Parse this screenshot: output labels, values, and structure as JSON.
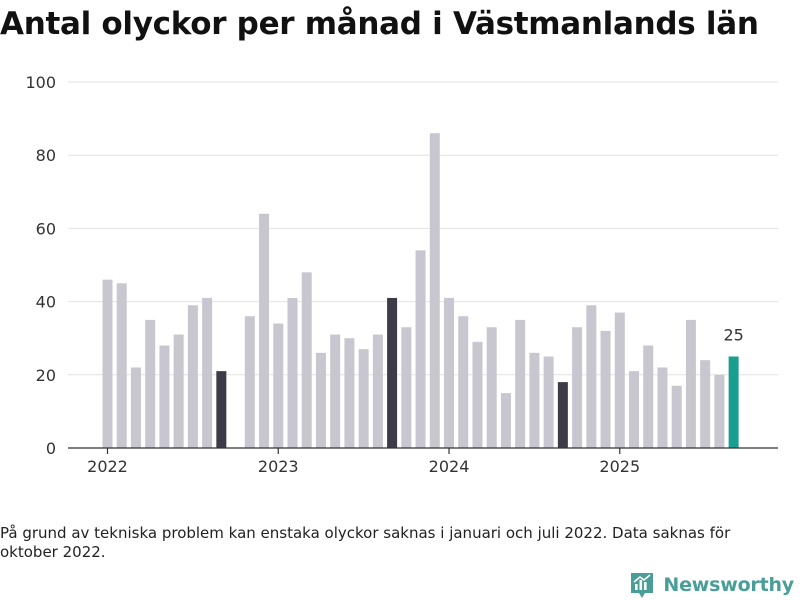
{
  "header": {
    "title": "Antal olyckor per månad i Västmanlands län"
  },
  "chart_data": {
    "type": "bar",
    "title": "Antal olyckor per månad i Västmanlands län",
    "xlabel": "",
    "ylabel": "",
    "ylim": [
      0,
      100
    ],
    "yticks": [
      0,
      20,
      40,
      60,
      80,
      100
    ],
    "year_labels": [
      {
        "label": "2022",
        "start_index": 0
      },
      {
        "label": "2023",
        "start_index": 12
      },
      {
        "label": "2024",
        "start_index": 24
      },
      {
        "label": "2025",
        "start_index": 36
      }
    ],
    "categories": [
      "2022-01",
      "2022-02",
      "2022-03",
      "2022-04",
      "2022-05",
      "2022-06",
      "2022-07",
      "2022-08",
      "2022-09",
      "2022-10",
      "2022-11",
      "2022-12",
      "2023-01",
      "2023-02",
      "2023-03",
      "2023-04",
      "2023-05",
      "2023-06",
      "2023-07",
      "2023-08",
      "2023-09",
      "2023-10",
      "2023-11",
      "2023-12",
      "2024-01",
      "2024-02",
      "2024-03",
      "2024-04",
      "2024-05",
      "2024-06",
      "2024-07",
      "2024-08",
      "2024-09",
      "2024-10",
      "2024-11",
      "2024-12",
      "2025-01",
      "2025-02",
      "2025-03",
      "2025-04",
      "2025-05",
      "2025-06",
      "2025-07",
      "2025-08",
      "2025-09"
    ],
    "values": [
      46,
      45,
      22,
      35,
      28,
      31,
      39,
      41,
      21,
      null,
      36,
      64,
      34,
      41,
      48,
      26,
      31,
      30,
      27,
      31,
      41,
      33,
      54,
      86,
      41,
      36,
      29,
      33,
      15,
      35,
      26,
      25,
      18,
      33,
      39,
      32,
      37,
      21,
      28,
      22,
      17,
      35,
      24,
      20,
      25
    ],
    "highlight_indices": [
      8,
      20,
      32
    ],
    "latest_index": 44,
    "latest_label": "25",
    "colors": {
      "bar": "#c8c7d0",
      "highlight": "#3c3b47",
      "latest": "#1a9e8f",
      "grid": "#e2e2e2",
      "axis": "#333333",
      "text": "#333333"
    }
  },
  "footnote": "På grund av tekniska problem kan enstaka olyckor saknas i januari och juli 2022. Data saknas för oktober 2022.",
  "brand": {
    "name": "Newsworthy",
    "icon": "newsworthy-logo-icon",
    "color": "#4a9e98"
  }
}
